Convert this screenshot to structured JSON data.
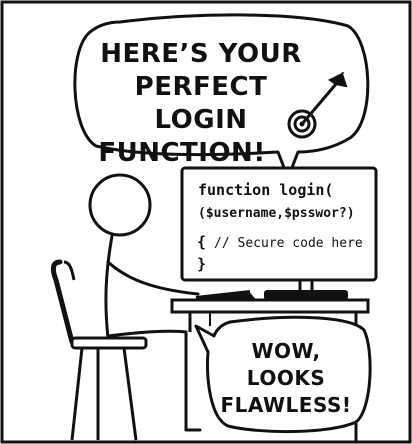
{
  "speech_top": {
    "line1": "HERE’S YOUR",
    "line2": "PERFECT LOGIN",
    "line3": "FUNCTION!"
  },
  "speech_bottom": {
    "line1": "WOW,",
    "line2": "LOOKS",
    "line3": "FLAWLESS!"
  },
  "code": {
    "line1": "function login(",
    "line2": "($username,$psswor?)",
    "line3_brace": "{",
    "line3_comment": "// Secure code here",
    "line4": "}"
  },
  "colors": {
    "ink": "#111111",
    "paper": "#ffffff"
  },
  "icons": [
    "target-icon",
    "arrow-icon"
  ]
}
